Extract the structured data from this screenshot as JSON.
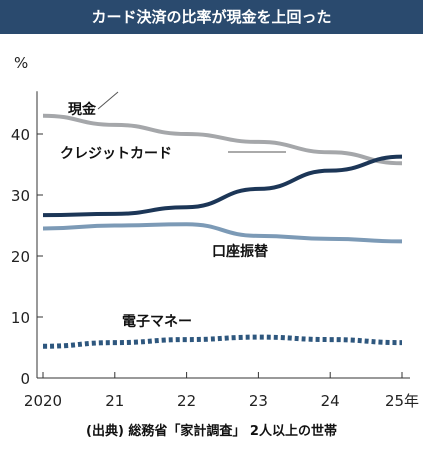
{
  "title": "カード決済の比率が現金を上回った",
  "source": "(出典) 総務省「家計調査」 2人以上の世帯",
  "chart_data": {
    "type": "line",
    "title": "カード決済の比率が現金を上回った",
    "x": [
      2020,
      2021,
      2022,
      2023,
      2024,
      2025
    ],
    "x_tick_labels": [
      "2020",
      "21",
      "22",
      "23",
      "24",
      "25年"
    ],
    "ylabel": "%",
    "y_ticks": [
      0,
      10,
      20,
      30,
      40
    ],
    "ylim": [
      0,
      47
    ],
    "grid": false,
    "series": [
      {
        "name": "現金",
        "values": [
          43.0,
          41.5,
          40.0,
          38.7,
          37.0,
          35.2
        ],
        "color": "#a5a7aa",
        "style": "solid"
      },
      {
        "name": "クレジットカード",
        "values": [
          26.7,
          26.9,
          28.0,
          31.0,
          34.0,
          36.3
        ],
        "color": "#1c3657",
        "style": "solid"
      },
      {
        "name": "口座振替",
        "values": [
          24.5,
          25.0,
          25.2,
          23.3,
          22.8,
          22.4
        ],
        "color": "#7c9ab6",
        "style": "solid"
      },
      {
        "name": "電子マネー",
        "values": [
          5.2,
          5.8,
          6.3,
          6.7,
          6.3,
          5.8
        ],
        "color": "#2e577e",
        "style": "dotted"
      }
    ],
    "source": "(出典) 総務省「家計調査」 2人以上の世帯"
  }
}
